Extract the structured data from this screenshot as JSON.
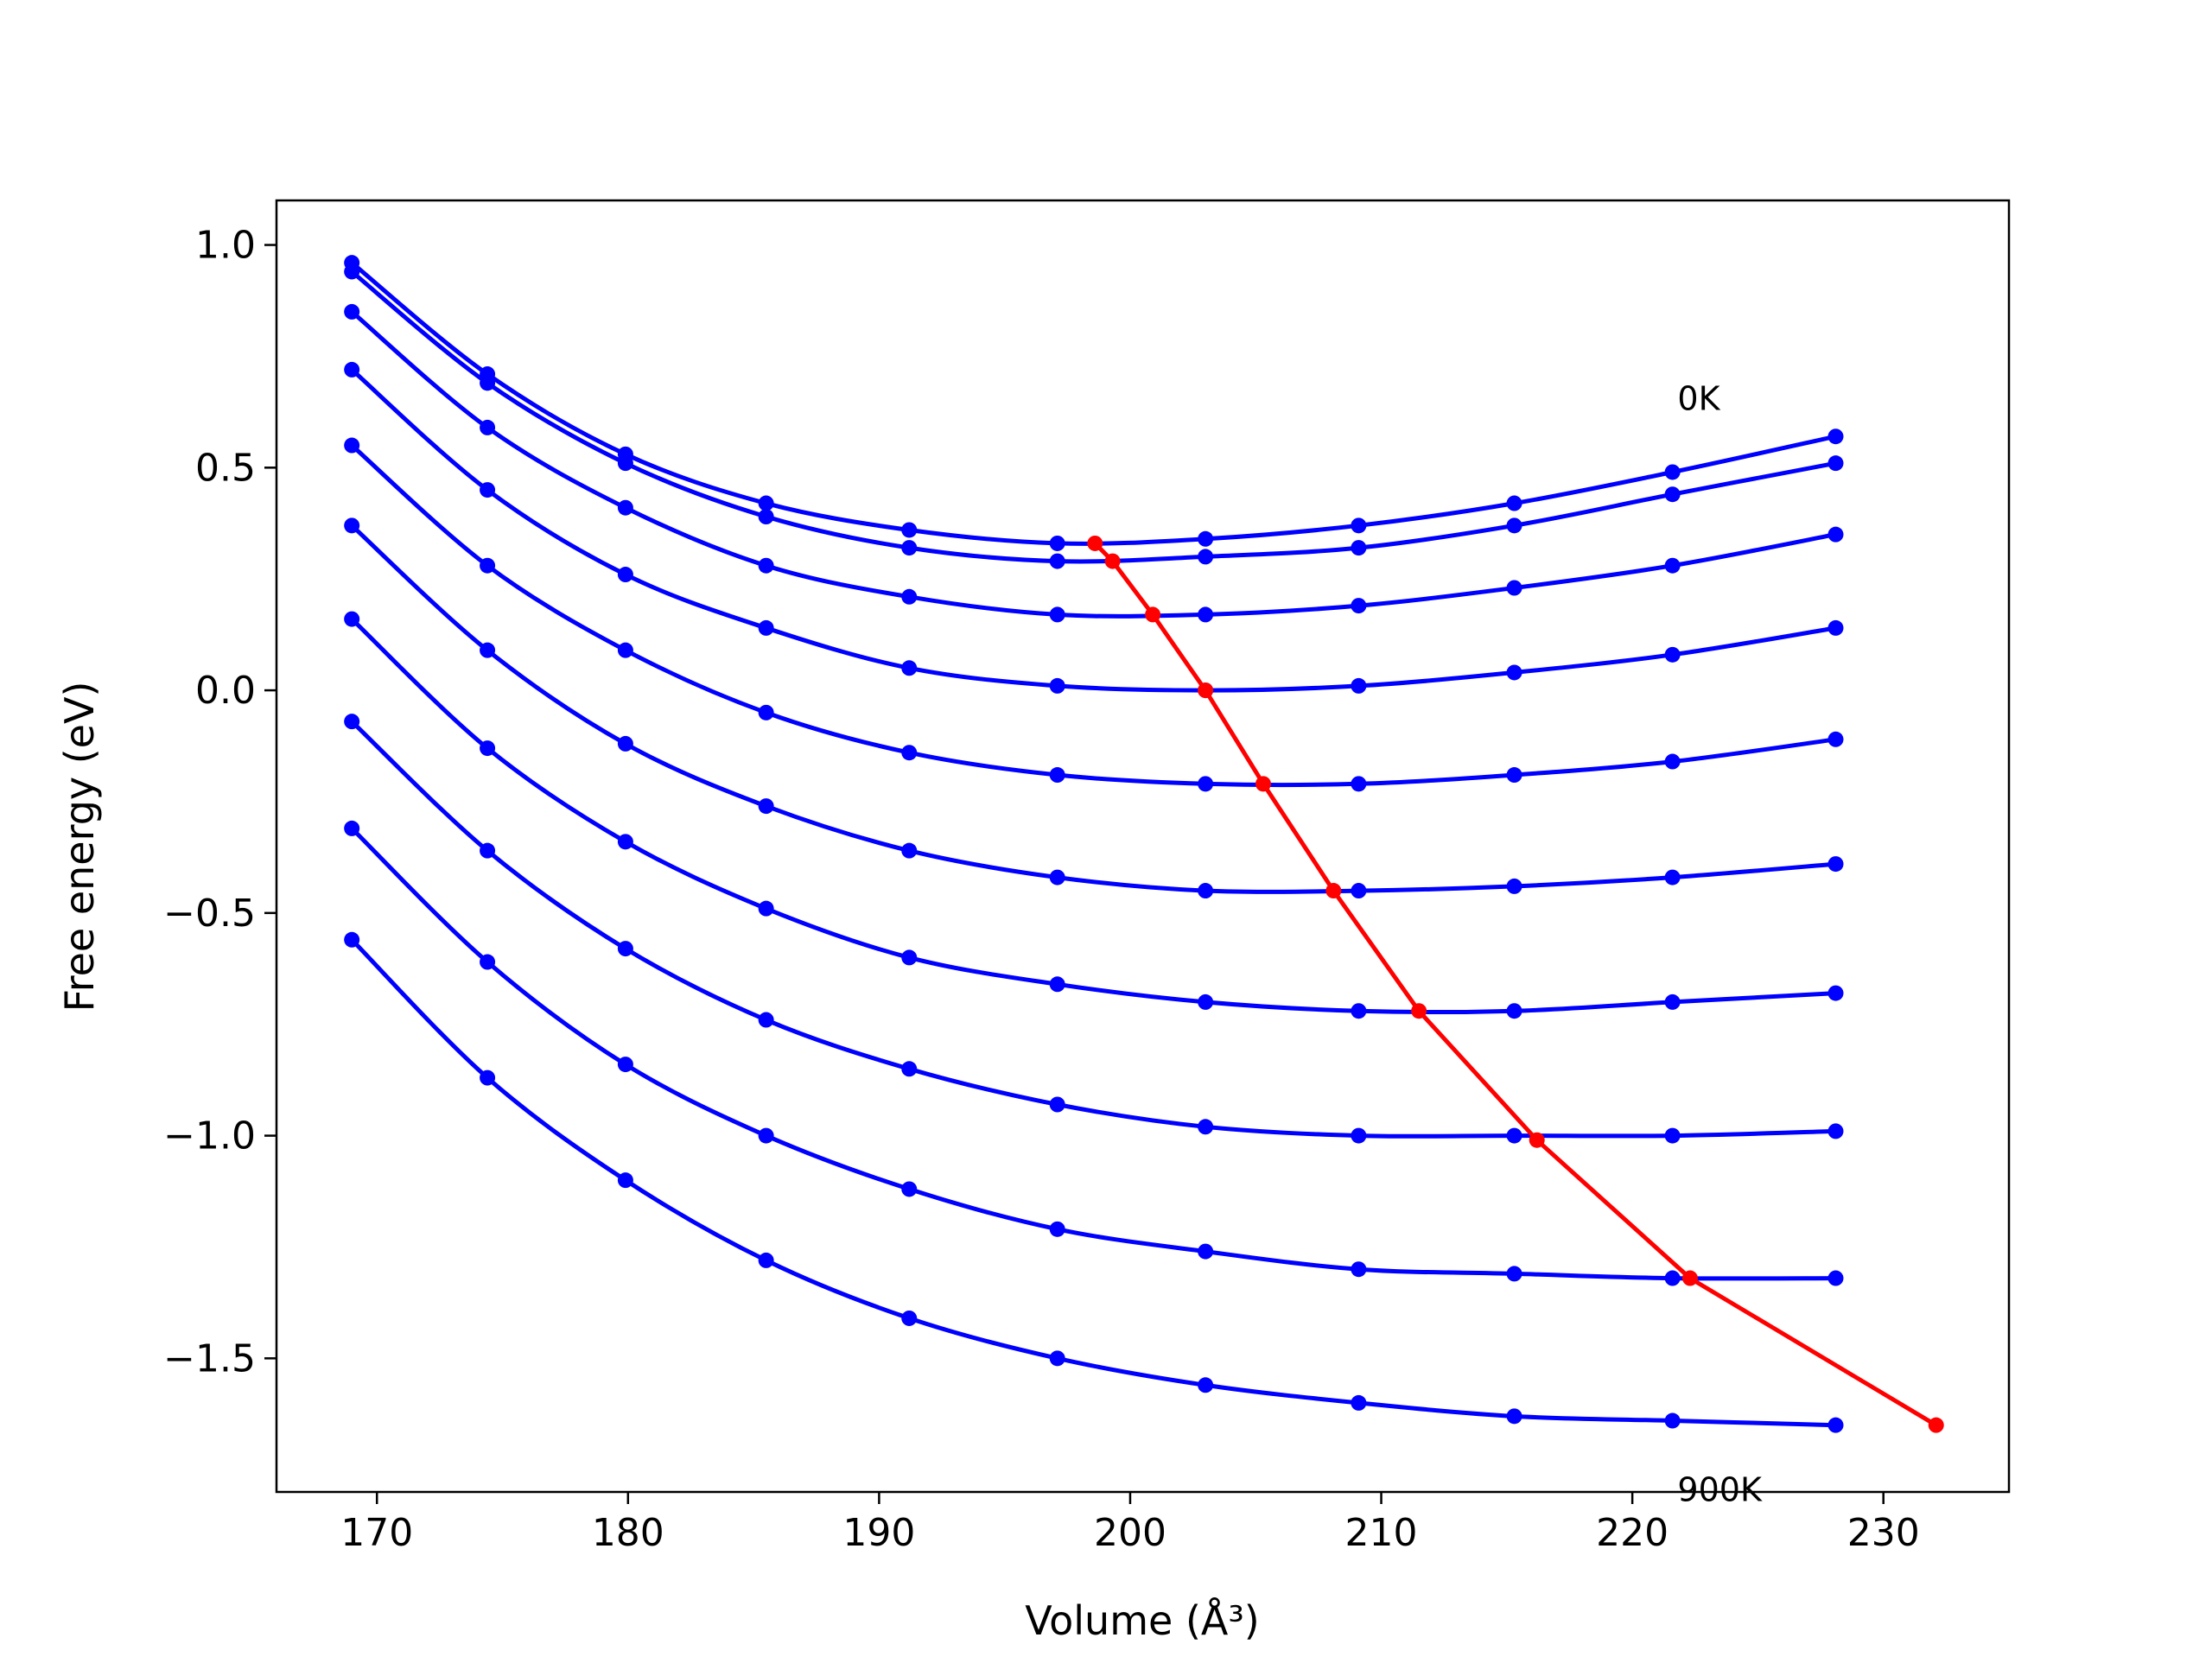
{
  "chart_data": {
    "type": "line",
    "xlabel": "Volume (Å³)",
    "ylabel": "Free energy (eV)",
    "xlim": [
      166,
      235
    ],
    "ylim": [
      -1.8,
      1.1
    ],
    "xticks": [
      170,
      180,
      190,
      200,
      210,
      220,
      230
    ],
    "yticks": [
      -1.5,
      -1.0,
      -0.5,
      0.0,
      0.5,
      1.0
    ],
    "xtick_labels": [
      "170",
      "180",
      "190",
      "200",
      "210",
      "220",
      "230"
    ],
    "ytick_labels": [
      "−1.5",
      "−1.0",
      "−0.5",
      "0.0",
      "0.5",
      "1.0"
    ],
    "grid": false,
    "annotations": [
      {
        "text": "0K",
        "x": 221.8,
        "y": 0.63
      },
      {
        "text": "900K",
        "x": 221.8,
        "y": -1.82
      }
    ],
    "x": [
      169.0,
      174.4,
      179.9,
      185.5,
      191.2,
      197.1,
      203.0,
      209.1,
      215.3,
      221.6,
      228.1
    ],
    "series": [
      {
        "color": "#0000ff",
        "values": [
          0.96,
          0.71,
          0.53,
          0.42,
          0.36,
          0.33,
          0.34,
          0.37,
          0.42,
          0.49,
          0.57
        ]
      },
      {
        "color": "#0000ff",
        "values": [
          0.94,
          0.69,
          0.51,
          0.39,
          0.32,
          0.29,
          0.3,
          0.32,
          0.37,
          0.44,
          0.51
        ]
      },
      {
        "color": "#0000ff",
        "values": [
          0.85,
          0.59,
          0.41,
          0.28,
          0.21,
          0.17,
          0.17,
          0.19,
          0.23,
          0.28,
          0.35
        ]
      },
      {
        "color": "#0000ff",
        "values": [
          0.72,
          0.45,
          0.26,
          0.14,
          0.05,
          0.01,
          0.0,
          0.01,
          0.04,
          0.08,
          0.14
        ]
      },
      {
        "color": "#0000ff",
        "values": [
          0.55,
          0.28,
          0.09,
          -0.05,
          -0.14,
          -0.19,
          -0.21,
          -0.21,
          -0.19,
          -0.16,
          -0.11
        ]
      },
      {
        "color": "#0000ff",
        "values": [
          0.37,
          0.09,
          -0.12,
          -0.26,
          -0.36,
          -0.42,
          -0.45,
          -0.45,
          -0.44,
          -0.42,
          -0.39
        ]
      },
      {
        "color": "#0000ff",
        "values": [
          0.16,
          -0.13,
          -0.34,
          -0.49,
          -0.6,
          -0.66,
          -0.7,
          -0.72,
          -0.72,
          -0.7,
          -0.68
        ]
      },
      {
        "color": "#0000ff",
        "values": [
          -0.07,
          -0.36,
          -0.58,
          -0.74,
          -0.85,
          -0.93,
          -0.98,
          -1.0,
          -1.0,
          -1.0,
          -0.99
        ]
      },
      {
        "color": "#0000ff",
        "values": [
          -0.31,
          -0.61,
          -0.84,
          -1.0,
          -1.12,
          -1.21,
          -1.26,
          -1.3,
          -1.31,
          -1.32,
          -1.32
        ]
      },
      {
        "color": "#0000ff",
        "values": [
          -0.56,
          -0.87,
          -1.1,
          -1.28,
          -1.41,
          -1.5,
          -1.56,
          -1.6,
          -1.63,
          -1.64,
          -1.65
        ]
      }
    ],
    "minimum_curve": {
      "color": "#ff0000",
      "x": [
        198.6,
        199.3,
        200.9,
        203.0,
        205.3,
        208.1,
        211.5,
        216.2,
        222.3,
        232.1
      ],
      "y": [
        0.33,
        0.29,
        0.17,
        0.0,
        -0.21,
        -0.45,
        -0.72,
        -1.01,
        -1.32,
        -1.65
      ]
    }
  }
}
